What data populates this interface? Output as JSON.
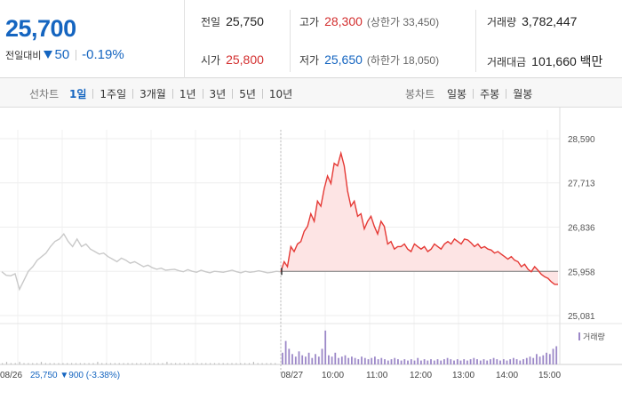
{
  "quote": {
    "price": "25,700",
    "change_label": "전일대비",
    "change_value": "50",
    "change_pct": "-0.19%"
  },
  "stats": {
    "prev_close": {
      "label": "전일",
      "value": "25,750"
    },
    "high": {
      "label": "고가",
      "value": "28,300",
      "sub": "(상한가 33,450)"
    },
    "volume": {
      "label": "거래량",
      "value": "3,782,447"
    },
    "open": {
      "label": "시가",
      "value": "25,800"
    },
    "low": {
      "label": "저가",
      "value": "25,650",
      "sub": "(하한가 18,050)"
    },
    "trade_amount": {
      "label": "거래대금",
      "value": "101,660 백만"
    }
  },
  "period_bar": {
    "line_label": "선차트",
    "line_items": [
      "1일",
      "1주일",
      "3개월",
      "1년",
      "3년",
      "5년",
      "10년"
    ],
    "active": "1일",
    "candle_label": "봉차트",
    "candle_items": [
      "일봉",
      "주봉",
      "월봉"
    ]
  },
  "colors": {
    "up": "#d32f2f",
    "down": "#1565c0",
    "today_line": "#e53935",
    "today_fill": "#fde4e4",
    "prev_line": "#c9c9c9",
    "volume_bar": "#9c88c8"
  },
  "chart_data": {
    "type": "area",
    "y_ticks": [
      "28,590",
      "27,713",
      "26,836",
      "25,958",
      "25,081"
    ],
    "ylim": [
      25081,
      28590
    ],
    "x_labels": [
      "08/26",
      "08/27",
      "10:00",
      "11:00",
      "12:00",
      "13:00",
      "14:00",
      "15:00"
    ],
    "volume_legend": "거래량",
    "prev_day": {
      "date": "08/26",
      "summary": "25,750 ▼900 (-3.38%)",
      "values": [
        25950,
        25880,
        25870,
        25910,
        25600,
        25780,
        25960,
        26050,
        26180,
        26250,
        26320,
        26450,
        26550,
        26600,
        26700,
        26550,
        26450,
        26600,
        26450,
        26500,
        26400,
        26350,
        26300,
        26320,
        26250,
        26200,
        26150,
        26220,
        26180,
        26120,
        26150,
        26100,
        26050,
        26080,
        26030,
        26000,
        26020,
        25980,
        25990,
        26000,
        25970,
        25950,
        25990,
        25960,
        25940,
        25980,
        25950,
        25930,
        25960,
        25950,
        25940,
        25960,
        25980,
        25950,
        25930,
        25960,
        25940,
        25950,
        25970,
        25950,
        25930,
        25940,
        25960,
        25950
      ]
    },
    "today": {
      "date": "08/27",
      "values": [
        25950,
        26150,
        26050,
        26450,
        26350,
        26500,
        26550,
        26750,
        26850,
        27100,
        26950,
        27350,
        27250,
        27600,
        27850,
        27700,
        28100,
        28050,
        28300,
        28050,
        27550,
        27250,
        27350,
        27050,
        27100,
        26800,
        26950,
        27050,
        26850,
        26700,
        26950,
        26850,
        26500,
        26550,
        26400,
        26450,
        26450,
        26500,
        26400,
        26350,
        26500,
        26450,
        26400,
        26450,
        26350,
        26400,
        26500,
        26450,
        26400,
        26500,
        26550,
        26500,
        26600,
        26550,
        26500,
        26600,
        26580,
        26520,
        26450,
        26500,
        26420,
        26450,
        26400,
        26380,
        26320,
        26350,
        26300,
        26250,
        26200,
        26250,
        26180,
        26150,
        26050,
        26100,
        26000,
        25950,
        26050,
        25980,
        25900,
        25850,
        25820,
        25750,
        25700,
        25700
      ]
    },
    "volume_prev": [
      1,
      2,
      1,
      1,
      2,
      1,
      1,
      1,
      1,
      2,
      1,
      1,
      1,
      1,
      1,
      1,
      1,
      1,
      1,
      1,
      1,
      1,
      2,
      1,
      1,
      1,
      1,
      1,
      1,
      1,
      1,
      1,
      1,
      1,
      1,
      1,
      1,
      1,
      2,
      1,
      1,
      1,
      1,
      1,
      1,
      1,
      1,
      1,
      1,
      1,
      1,
      1,
      1,
      1,
      1,
      1,
      1,
      1,
      2,
      1,
      1,
      1,
      1,
      1
    ],
    "volume_today": [
      9,
      18,
      12,
      8,
      6,
      10,
      7,
      6,
      9,
      5,
      8,
      6,
      12,
      26,
      7,
      6,
      9,
      5,
      6,
      7,
      5,
      6,
      5,
      4,
      6,
      5,
      4,
      5,
      6,
      4,
      5,
      4,
      3,
      4,
      5,
      4,
      3,
      4,
      3,
      4,
      3,
      5,
      3,
      4,
      3,
      4,
      3,
      4,
      3,
      4,
      5,
      4,
      3,
      4,
      3,
      4,
      3,
      4,
      5,
      4,
      3,
      4,
      3,
      4,
      5,
      4,
      3,
      4,
      3,
      4,
      5,
      4,
      3,
      4,
      5,
      6,
      5,
      8,
      6,
      7,
      9,
      8,
      12,
      14
    ]
  }
}
